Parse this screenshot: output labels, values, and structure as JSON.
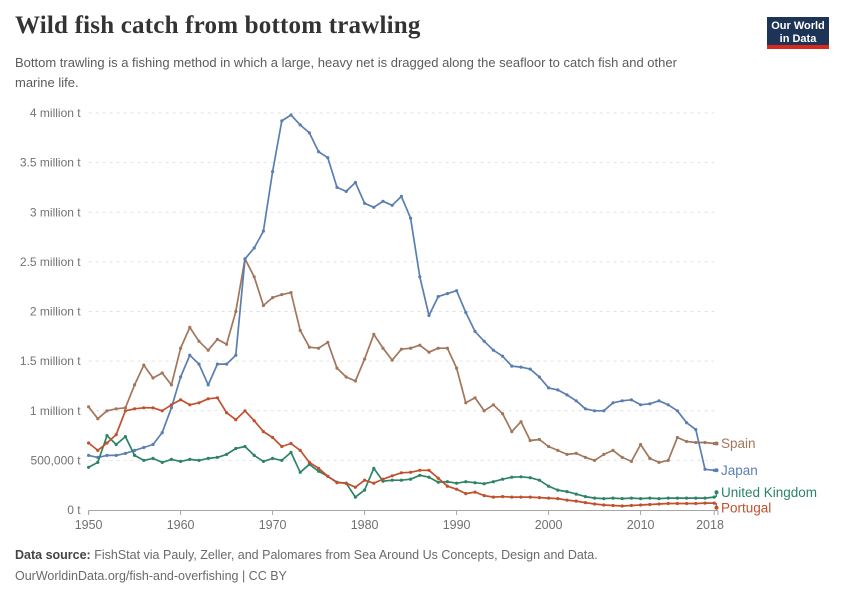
{
  "header": {
    "title": "Wild fish catch from bottom trawling",
    "subtitle": "Bottom trawling is a fishing method in which a large, heavy net is dragged along the seafloor to catch fish and other marine life.",
    "logo": {
      "line1": "Our World",
      "line2": "in Data",
      "bg_color": "#1D3456",
      "accent_color": "#D8291C"
    }
  },
  "chart_data": {
    "type": "line",
    "title": "Wild fish catch from bottom trawling",
    "unit": "tonnes",
    "xlabel": "",
    "ylabel": "",
    "x_range": [
      1950,
      2018
    ],
    "ylim_millions": [
      0,
      4
    ],
    "grid": "horizontal-dashed",
    "legend_position": "right-end-labels",
    "x_ticks": [
      1950,
      1960,
      1970,
      1980,
      1990,
      2000,
      2010,
      2018
    ],
    "y_ticks": [
      {
        "value_millions": 0,
        "label": "0 t"
      },
      {
        "value_millions": 0.5,
        "label": "500,000 t"
      },
      {
        "value_millions": 1,
        "label": "1 million t"
      },
      {
        "value_millions": 1.5,
        "label": "1.5 million t"
      },
      {
        "value_millions": 2,
        "label": "2 million t"
      },
      {
        "value_millions": 2.5,
        "label": "2.5 million t"
      },
      {
        "value_millions": 3,
        "label": "3 million t"
      },
      {
        "value_millions": 3.5,
        "label": "3.5 million t"
      },
      {
        "value_millions": 4,
        "label": "4 million t"
      }
    ],
    "years": [
      1950,
      1951,
      1952,
      1953,
      1954,
      1955,
      1956,
      1957,
      1958,
      1959,
      1960,
      1961,
      1962,
      1963,
      1964,
      1965,
      1966,
      1967,
      1968,
      1969,
      1970,
      1971,
      1972,
      1973,
      1974,
      1975,
      1976,
      1977,
      1978,
      1979,
      1980,
      1981,
      1982,
      1983,
      1984,
      1985,
      1986,
      1987,
      1988,
      1989,
      1990,
      1991,
      1992,
      1993,
      1994,
      1995,
      1996,
      1997,
      1998,
      1999,
      2000,
      2001,
      2002,
      2003,
      2004,
      2005,
      2006,
      2007,
      2008,
      2009,
      2010,
      2011,
      2012,
      2013,
      2014,
      2015,
      2016,
      2017,
      2018
    ],
    "series": [
      {
        "name": "Spain",
        "color": "#A2765A",
        "values_millions": [
          1.04,
          0.92,
          1.0,
          1.02,
          1.03,
          1.26,
          1.46,
          1.33,
          1.38,
          1.26,
          1.63,
          1.84,
          1.7,
          1.61,
          1.72,
          1.67,
          2.0,
          2.53,
          2.35,
          2.06,
          2.14,
          2.17,
          2.19,
          1.81,
          1.64,
          1.63,
          1.69,
          1.43,
          1.34,
          1.3,
          1.52,
          1.77,
          1.63,
          1.51,
          1.62,
          1.63,
          1.66,
          1.59,
          1.63,
          1.63,
          1.43,
          1.08,
          1.13,
          1.0,
          1.06,
          0.97,
          0.79,
          0.89,
          0.7,
          0.71,
          0.64,
          0.6,
          0.56,
          0.57,
          0.53,
          0.5,
          0.56,
          0.6,
          0.53,
          0.49,
          0.66,
          0.52,
          0.48,
          0.5,
          0.73,
          0.69,
          0.68,
          0.68,
          0.67
        ]
      },
      {
        "name": "Japan",
        "color": "#5B7EB1",
        "values_millions": [
          0.55,
          0.53,
          0.55,
          0.55,
          0.57,
          0.6,
          0.63,
          0.66,
          0.78,
          1.03,
          1.34,
          1.56,
          1.47,
          1.26,
          1.47,
          1.47,
          1.56,
          2.53,
          2.64,
          2.81,
          3.41,
          3.92,
          3.98,
          3.88,
          3.8,
          3.61,
          3.55,
          3.25,
          3.21,
          3.3,
          3.09,
          3.05,
          3.11,
          3.07,
          3.16,
          2.94,
          2.35,
          1.96,
          2.15,
          2.18,
          2.21,
          1.99,
          1.8,
          1.7,
          1.61,
          1.55,
          1.45,
          1.44,
          1.42,
          1.34,
          1.23,
          1.21,
          1.16,
          1.1,
          1.02,
          1.0,
          1.0,
          1.08,
          1.1,
          1.11,
          1.06,
          1.07,
          1.1,
          1.06,
          1.0,
          0.88,
          0.81,
          0.41,
          0.4
        ]
      },
      {
        "name": "United Kingdom",
        "color": "#2C8465",
        "values_millions": [
          0.43,
          0.48,
          0.75,
          0.66,
          0.74,
          0.55,
          0.5,
          0.52,
          0.48,
          0.51,
          0.49,
          0.51,
          0.5,
          0.52,
          0.53,
          0.56,
          0.62,
          0.64,
          0.55,
          0.49,
          0.52,
          0.5,
          0.58,
          0.38,
          0.46,
          0.39,
          0.34,
          0.28,
          0.27,
          0.13,
          0.2,
          0.42,
          0.29,
          0.3,
          0.3,
          0.31,
          0.35,
          0.33,
          0.28,
          0.285,
          0.27,
          0.285,
          0.275,
          0.265,
          0.285,
          0.31,
          0.33,
          0.335,
          0.325,
          0.3,
          0.24,
          0.2,
          0.185,
          0.16,
          0.135,
          0.12,
          0.115,
          0.12,
          0.115,
          0.12,
          0.115,
          0.12,
          0.115,
          0.12,
          0.12,
          0.12,
          0.12,
          0.12,
          0.13
        ]
      },
      {
        "name": "Portugal",
        "color": "#C1502E",
        "values_millions": [
          0.675,
          0.6,
          0.675,
          0.76,
          1.0,
          1.02,
          1.03,
          1.03,
          1.0,
          1.06,
          1.11,
          1.06,
          1.08,
          1.12,
          1.13,
          0.98,
          0.91,
          1.0,
          0.9,
          0.79,
          0.73,
          0.64,
          0.67,
          0.6,
          0.48,
          0.42,
          0.34,
          0.275,
          0.27,
          0.23,
          0.3,
          0.27,
          0.31,
          0.345,
          0.375,
          0.38,
          0.4,
          0.4,
          0.32,
          0.24,
          0.21,
          0.165,
          0.18,
          0.145,
          0.13,
          0.135,
          0.13,
          0.13,
          0.13,
          0.125,
          0.12,
          0.115,
          0.1,
          0.09,
          0.075,
          0.06,
          0.05,
          0.045,
          0.04,
          0.045,
          0.05,
          0.055,
          0.06,
          0.065,
          0.065,
          0.065,
          0.065,
          0.07,
          0.07
        ]
      }
    ]
  },
  "footer": {
    "source_bold": "Data source:",
    "source_rest": " FishStat via Pauly, Zeller, and Palomares from Sea Around Us Concepts, Design and Data.",
    "license_line": "OurWorldinData.org/fish-and-overfishing | CC BY"
  }
}
